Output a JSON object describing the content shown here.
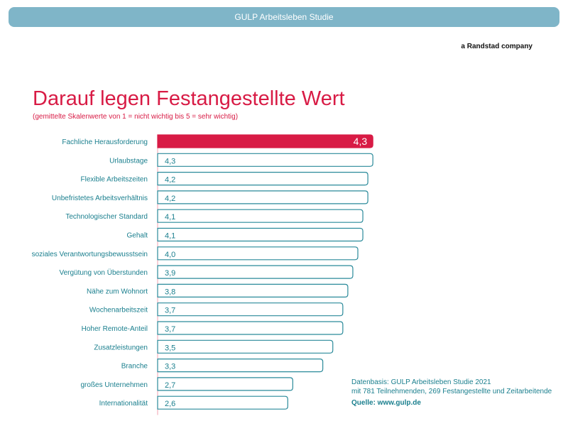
{
  "header": {
    "banner": "GULP Arbeitsleben Studie",
    "company": "a Randstad company"
  },
  "chart_data": {
    "type": "bar",
    "orientation": "horizontal",
    "title": "Darauf legen Festangestellte Wert",
    "subtitle": "(gemittelte Skalenwerte von 1 = nicht wichtig bis 5 = sehr wichtig)",
    "categories": [
      "Fachliche Herausforderung",
      "Urlaubstage",
      "Flexible Arbeitszeiten",
      "Unbefristetes Arbeitsverhältnis",
      "Technologischer Standard",
      "Gehalt",
      "soziales Verantwortungsbewusstsein",
      "Vergütung von Überstunden",
      "Nähe zum Wohnort",
      "Wochenarbeitszeit",
      "Hoher Remote-Anteil",
      "Zusatzleistungen",
      "Branche",
      "großes Unternehmen",
      "Internationalität"
    ],
    "values": [
      4.3,
      4.3,
      4.2,
      4.2,
      4.1,
      4.1,
      4.0,
      3.9,
      3.8,
      3.7,
      3.7,
      3.5,
      3.3,
      2.7,
      2.6
    ],
    "labels": [
      "4,3",
      "4,3",
      "4,2",
      "4,2",
      "4,1",
      "4,1",
      "4,0",
      "3,9",
      "3,8",
      "3,7",
      "3,7",
      "3,5",
      "3,3",
      "2,7",
      "2,6"
    ],
    "highlight_index": 0,
    "colors": {
      "highlight": "#d81b45",
      "outline": "#2a8a9a",
      "text": "#1a7f8e"
    }
  },
  "source": {
    "line1": "Datenbasis: GULP Arbeitsleben Studie 2021",
    "line2": "mit 781 Teilnehmenden, 269 Festangestellte und Zeitarbeitende",
    "line3": "Quelle: www.gulp.de"
  }
}
